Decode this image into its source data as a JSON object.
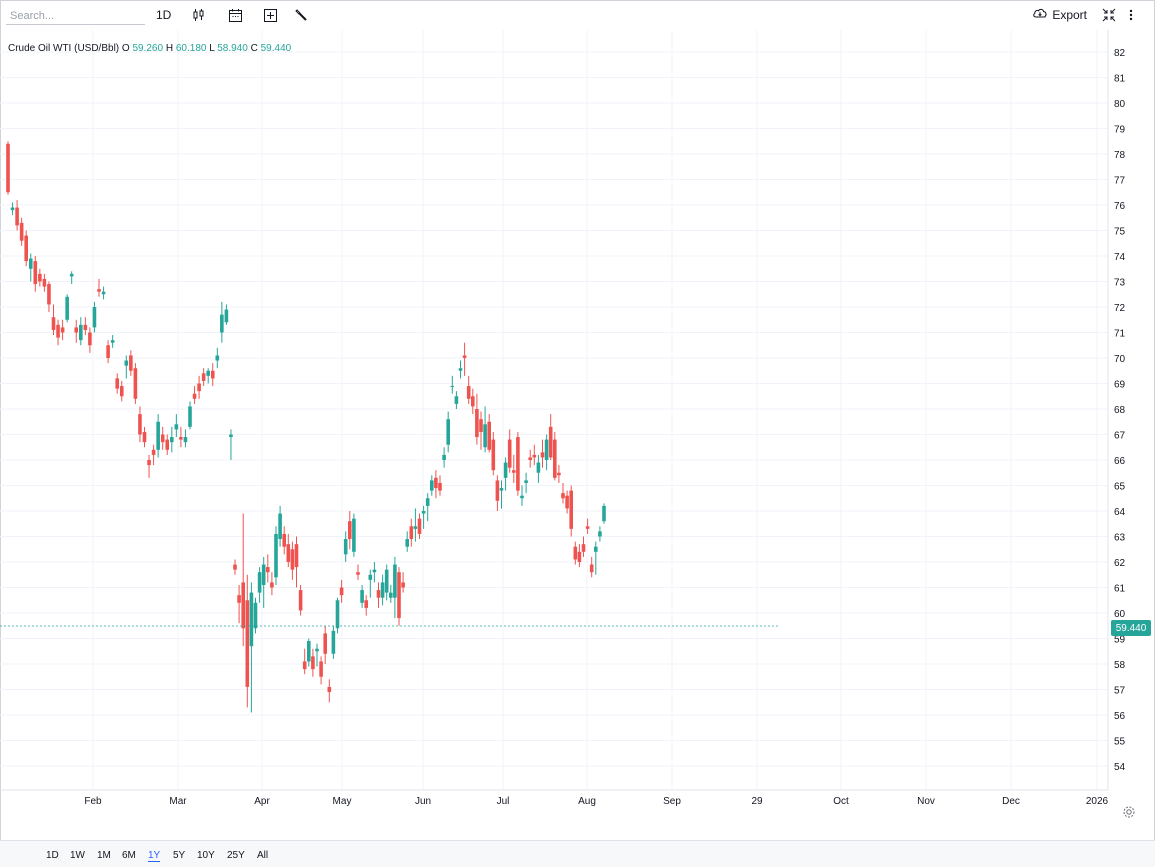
{
  "toolbar": {
    "search_placeholder": "Search...",
    "interval_label": "1D",
    "export_label": "Export"
  },
  "legend": {
    "symbol": "Crude Oil WTI (USD/Bbl)",
    "o_label": "O",
    "o_value": "59.260",
    "h_label": "H",
    "h_value": "60.180",
    "l_label": "L",
    "l_value": "58.940",
    "c_label": "C",
    "c_value": "59.440"
  },
  "colors": {
    "up": "#26a69a",
    "down": "#ef5350",
    "grid": "#f0f3fa",
    "accent": "#2962ff"
  },
  "current_price": "59.440",
  "icons": [
    "candlestick-icon",
    "calendar-icon",
    "add-indicator-icon",
    "wrench-icon",
    "cloud-download-icon",
    "collapse-icon",
    "more-vertical-icon",
    "gear-icon"
  ],
  "ranges": [
    "1D",
    "1W",
    "1M",
    "6M",
    "1Y",
    "5Y",
    "10Y",
    "25Y",
    "All"
  ],
  "active_range": "1Y",
  "chart_data": {
    "type": "candlestick",
    "y_axis": {
      "range": [
        54,
        82
      ],
      "ticks": [
        "82",
        "81",
        "80",
        "79",
        "78",
        "77",
        "76",
        "75",
        "74",
        "73",
        "72",
        "71",
        "70",
        "69",
        "68",
        "67",
        "66",
        "65",
        "64",
        "63",
        "62",
        "61",
        "60",
        "59",
        "58",
        "57",
        "56",
        "55",
        "54"
      ]
    },
    "x_axis": {
      "labels": [
        "Feb",
        "Mar",
        "Apr",
        "May",
        "Jun",
        "Jul",
        "Aug",
        "Sep",
        "29",
        "Oct",
        "Nov",
        "Dec",
        "2026"
      ]
    },
    "candles": [
      [
        78.4,
        78.5,
        76.4,
        76.5
      ],
      [
        75.8,
        76.1,
        75.6,
        75.9
      ],
      [
        75.9,
        76.2,
        75.0,
        75.2
      ],
      [
        75.3,
        75.5,
        74.4,
        74.6
      ],
      [
        74.8,
        75.0,
        73.6,
        73.8
      ],
      [
        73.5,
        74.1,
        73.0,
        73.9
      ],
      [
        73.8,
        74.0,
        72.6,
        72.9
      ],
      [
        73.3,
        73.5,
        72.8,
        73.0
      ],
      [
        73.1,
        73.3,
        72.6,
        72.8
      ],
      [
        72.9,
        73.0,
        71.8,
        72.1
      ],
      [
        71.6,
        72.1,
        70.9,
        71.1
      ],
      [
        71.3,
        71.5,
        70.5,
        70.8
      ],
      [
        71.2,
        71.5,
        70.7,
        71.0
      ],
      [
        71.5,
        72.5,
        71.4,
        72.4
      ],
      [
        73.2,
        73.4,
        72.9,
        73.3
      ],
      [
        71.2,
        71.5,
        70.6,
        71.0
      ],
      [
        70.7,
        71.6,
        70.5,
        71.3
      ],
      [
        71.3,
        71.6,
        70.9,
        71.1
      ],
      [
        71.0,
        71.2,
        70.2,
        70.5
      ],
      [
        71.2,
        72.2,
        71.0,
        72.0
      ],
      [
        72.7,
        73.1,
        72.4,
        72.6
      ],
      [
        72.5,
        72.8,
        72.3,
        72.6
      ],
      [
        70.5,
        70.7,
        69.8,
        70.0
      ],
      [
        70.6,
        70.9,
        70.4,
        70.7
      ],
      [
        69.2,
        69.4,
        68.6,
        68.8
      ],
      [
        68.9,
        69.1,
        68.3,
        68.5
      ],
      [
        69.7,
        70.1,
        69.2,
        69.9
      ],
      [
        70.1,
        70.3,
        69.3,
        69.5
      ],
      [
        69.6,
        69.8,
        68.2,
        68.4
      ],
      [
        67.8,
        68.1,
        66.7,
        67.0
      ],
      [
        67.1,
        67.3,
        66.5,
        66.7
      ],
      [
        66.0,
        66.2,
        65.3,
        65.8
      ],
      [
        66.4,
        66.6,
        65.8,
        66.2
      ],
      [
        66.4,
        67.8,
        66.1,
        67.5
      ],
      [
        67.0,
        67.3,
        66.4,
        66.7
      ],
      [
        66.8,
        67.0,
        66.2,
        66.4
      ],
      [
        66.7,
        67.3,
        66.3,
        66.9
      ],
      [
        67.2,
        67.8,
        66.9,
        67.4
      ],
      [
        66.9,
        67.3,
        66.5,
        66.8
      ],
      [
        66.7,
        67.2,
        66.5,
        66.9
      ],
      [
        67.3,
        68.3,
        67.2,
        68.1
      ],
      [
        68.6,
        68.9,
        68.2,
        68.4
      ],
      [
        69.0,
        69.3,
        68.4,
        68.7
      ],
      [
        69.4,
        69.6,
        68.9,
        69.1
      ],
      [
        69.3,
        69.6,
        69.0,
        69.5
      ],
      [
        69.5,
        69.8,
        68.9,
        69.2
      ],
      [
        69.9,
        70.4,
        69.6,
        70.1
      ],
      [
        71.0,
        72.2,
        70.6,
        71.7
      ],
      [
        71.4,
        72.1,
        71.3,
        71.9
      ],
      [
        66.9,
        67.2,
        66.0,
        67.0
      ]
    ],
    "candles_after_gap": [
      [
        61.9,
        62.1,
        61.5,
        61.7
      ],
      [
        60.7,
        61.1,
        59.6,
        60.4
      ],
      [
        61.2,
        63.9,
        58.7,
        59.4
      ],
      [
        60.5,
        61.5,
        56.3,
        57.1
      ],
      [
        58.7,
        61.2,
        56.1,
        60.8
      ],
      [
        59.4,
        60.6,
        59.2,
        60.4
      ],
      [
        60.8,
        61.8,
        60.4,
        61.6
      ],
      [
        61.1,
        62.2,
        60.2,
        61.9
      ],
      [
        61.8,
        62.3,
        61.2,
        61.6
      ],
      [
        61.2,
        61.6,
        60.7,
        61.0
      ],
      [
        61.4,
        63.4,
        61.1,
        63.1
      ],
      [
        62.9,
        64.2,
        62.6,
        63.9
      ],
      [
        63.1,
        63.4,
        62.3,
        62.6
      ],
      [
        62.7,
        63.1,
        61.8,
        62.0
      ],
      [
        62.5,
        62.8,
        61.3,
        61.7
      ],
      [
        62.7,
        63.0,
        61.0,
        61.8
      ],
      [
        60.9,
        61.1,
        59.9,
        60.1
      ],
      [
        58.1,
        58.6,
        57.6,
        57.8
      ],
      [
        58.1,
        59.0,
        57.9,
        58.9
      ],
      [
        58.3,
        58.6,
        57.5,
        57.8
      ],
      [
        58.5,
        58.8,
        57.9,
        58.6
      ],
      [
        58.1,
        58.3,
        57.2,
        57.5
      ],
      [
        59.2,
        59.5,
        58.0,
        58.4
      ],
      [
        57.1,
        57.4,
        56.5,
        56.9
      ],
      [
        58.4,
        59.5,
        58.2,
        59.3
      ],
      [
        59.4,
        60.6,
        59.2,
        60.5
      ],
      [
        61.0,
        61.3,
        60.4,
        60.7
      ],
      [
        62.3,
        63.2,
        62.0,
        62.9
      ],
      [
        63.6,
        64.0,
        62.5,
        62.9
      ],
      [
        62.4,
        63.9,
        62.2,
        63.7
      ],
      [
        61.6,
        61.9,
        61.3,
        61.5
      ],
      [
        60.4,
        61.1,
        60.2,
        60.9
      ],
      [
        60.5,
        60.7,
        59.9,
        60.2
      ],
      [
        61.3,
        61.7,
        60.6,
        61.5
      ],
      [
        61.6,
        62.0,
        61.2,
        61.7
      ],
      [
        60.9,
        61.2,
        60.2,
        60.6
      ],
      [
        60.6,
        61.5,
        60.3,
        61.2
      ],
      [
        60.8,
        61.9,
        60.5,
        61.7
      ],
      [
        60.6,
        61.1,
        60.4,
        60.8
      ],
      [
        60.6,
        62.2,
        59.8,
        61.9
      ],
      [
        61.6,
        61.8,
        59.5,
        59.8
      ],
      [
        61.2,
        61.6,
        60.8,
        61.0
      ],
      [
        62.6,
        63.2,
        62.4,
        62.9
      ],
      [
        63.4,
        63.7,
        62.6,
        62.9
      ],
      [
        63.3,
        64.1,
        62.8,
        63.4
      ],
      [
        63.7,
        63.9,
        62.9,
        63.1
      ],
      [
        63.9,
        64.2,
        63.3,
        64.0
      ],
      [
        64.2,
        64.7,
        63.6,
        64.5
      ],
      [
        64.8,
        65.4,
        64.6,
        65.2
      ],
      [
        65.3,
        65.6,
        64.5,
        64.9
      ],
      [
        65.1,
        65.4,
        64.6,
        64.8
      ],
      [
        66.0,
        66.5,
        65.7,
        66.2
      ],
      [
        66.6,
        67.9,
        66.3,
        67.6
      ],
      [
        68.9,
        69.3,
        68.6,
        68.9
      ],
      [
        68.2,
        68.7,
        68.0,
        68.5
      ],
      [
        69.5,
        69.9,
        69.2,
        69.6
      ],
      [
        70.1,
        70.6,
        69.3,
        70.0
      ],
      [
        68.9,
        69.3,
        68.2,
        68.4
      ],
      [
        68.5,
        68.8,
        67.8,
        68.1
      ],
      [
        68.0,
        68.6,
        66.6,
        66.9
      ],
      [
        67.6,
        67.9,
        66.4,
        67.1
      ],
      [
        66.5,
        68.1,
        66.3,
        67.4
      ],
      [
        67.5,
        67.8,
        66.3,
        66.4
      ],
      [
        66.8,
        67.1,
        65.4,
        65.6
      ],
      [
        65.2,
        65.4,
        64.0,
        64.4
      ],
      [
        64.8,
        65.2,
        64.1,
        64.9
      ],
      [
        65.3,
        66.1,
        64.8,
        65.9
      ],
      [
        66.8,
        67.2,
        65.5,
        65.7
      ],
      [
        65.6,
        66.2,
        65.1,
        65.5
      ],
      [
        66.9,
        67.1,
        64.6,
        64.8
      ],
      [
        64.5,
        65.0,
        64.2,
        64.6
      ],
      [
        65.1,
        65.5,
        64.7,
        65.2
      ],
      [
        66.1,
        66.4,
        65.7,
        66.0
      ],
      [
        66.2,
        66.6,
        65.8,
        66.1
      ],
      [
        65.5,
        66.2,
        65.1,
        65.9
      ],
      [
        66.3,
        66.8,
        65.7,
        66.1
      ],
      [
        66.0,
        67.0,
        65.6,
        66.8
      ],
      [
        67.3,
        67.8,
        66.0,
        66.1
      ],
      [
        66.8,
        67.1,
        65.2,
        65.3
      ],
      [
        65.5,
        65.8,
        65.1,
        65.4
      ],
      [
        64.7,
        65.1,
        64.3,
        64.5
      ],
      [
        64.6,
        64.8,
        63.9,
        64.1
      ],
      [
        64.8,
        65.0,
        63.0,
        63.3
      ],
      [
        62.6,
        62.8,
        61.9,
        62.1
      ],
      [
        62.4,
        62.7,
        61.8,
        62.0
      ],
      [
        62.7,
        63.0,
        62.2,
        62.4
      ],
      [
        63.4,
        63.7,
        63.1,
        63.3
      ],
      [
        61.9,
        62.2,
        61.4,
        61.6
      ],
      [
        62.4,
        62.8,
        61.5,
        62.6
      ],
      [
        63.0,
        63.4,
        62.8,
        63.2
      ],
      [
        63.6,
        64.3,
        63.5,
        64.2
      ]
    ]
  }
}
